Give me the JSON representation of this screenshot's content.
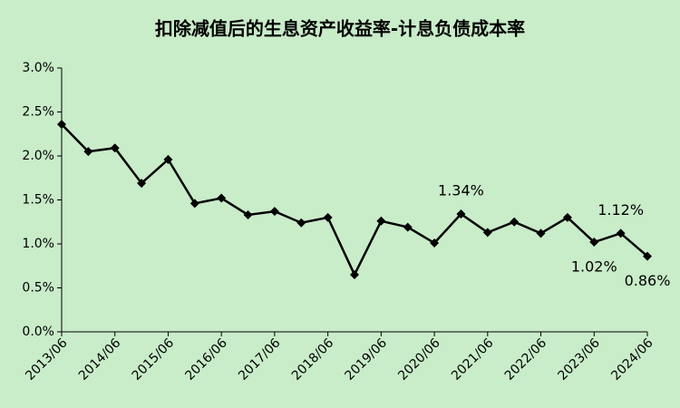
{
  "chart_data": {
    "type": "line",
    "title": "扣除减值后的生息资产收益率-计息负债成本率",
    "categories": [
      "2013/06",
      null,
      "2014/06",
      null,
      "2015/06",
      null,
      "2016/06",
      null,
      "2017/06",
      null,
      "2018/06",
      null,
      "2019/06",
      null,
      "2020/06",
      null,
      "2021/06",
      null,
      "2022/06",
      null,
      "2023/06",
      null,
      "2024/06"
    ],
    "values": [
      2.36,
      2.05,
      2.09,
      1.69,
      1.96,
      1.46,
      1.52,
      1.33,
      1.37,
      1.24,
      1.3,
      0.65,
      1.26,
      1.19,
      1.01,
      1.34,
      1.13,
      1.25,
      1.12,
      1.3,
      1.02,
      1.12,
      0.86
    ],
    "value_labels": [
      null,
      null,
      null,
      null,
      null,
      null,
      null,
      null,
      null,
      null,
      null,
      null,
      null,
      null,
      null,
      "1.34%",
      null,
      null,
      null,
      null,
      "1.02%",
      "1.12%",
      "0.86%"
    ],
    "color": "#000000",
    "ylim": [
      0,
      3
    ],
    "yticks": [
      {
        "value": 0,
        "label": "0.0%"
      },
      {
        "value": 0.5,
        "label": "0.5%"
      },
      {
        "value": 1,
        "label": "1.0%"
      },
      {
        "value": 1.5,
        "label": "1.5%"
      },
      {
        "value": 2,
        "label": "2.0%"
      },
      {
        "value": 2.5,
        "label": "2.5%"
      },
      {
        "value": 3,
        "label": "3.0%"
      }
    ],
    "grid": false
  }
}
